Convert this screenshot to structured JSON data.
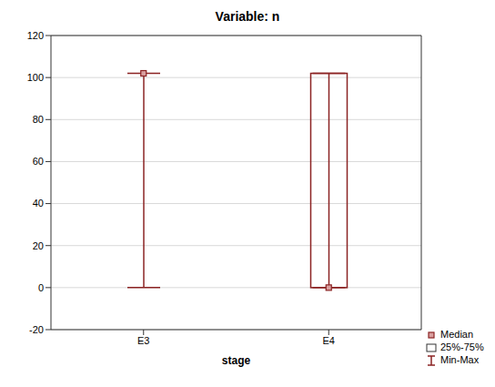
{
  "chart_data": {
    "type": "box",
    "title": "Variable: n",
    "x_label": "stage",
    "categories": [
      "E3",
      "E4"
    ],
    "series": [
      {
        "name": "Median",
        "values": [
          102,
          0
        ]
      },
      {
        "name": "25%-75%",
        "low": [
          102,
          0
        ],
        "high": [
          102,
          102
        ]
      },
      {
        "name": "Min-Max",
        "low": [
          0,
          0
        ],
        "high": [
          102,
          102
        ]
      }
    ],
    "color": "#8b2323",
    "ylim": [
      -20,
      120
    ],
    "yticks": [
      -20,
      0,
      20,
      40,
      60,
      80,
      100,
      120
    ],
    "grid": true,
    "legend": "bottom right"
  }
}
